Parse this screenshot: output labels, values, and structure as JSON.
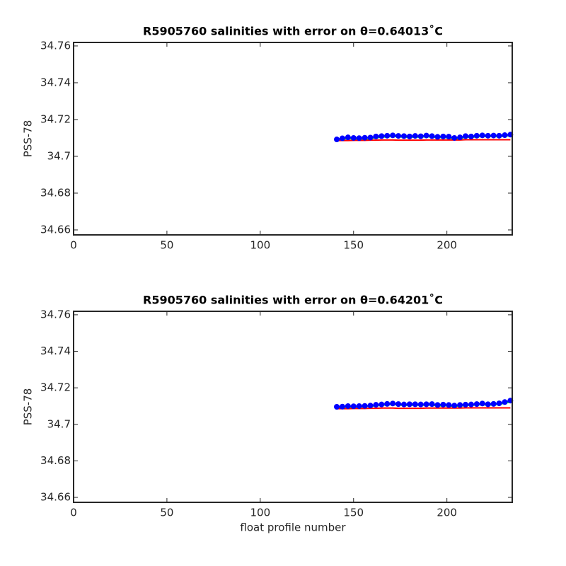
{
  "chart_data": [
    {
      "type": "line",
      "title": "R5905760 salinities with error on θ=0.64013˚C",
      "ylabel": "PSS-78",
      "x": [
        141,
        144,
        147,
        150,
        153,
        156,
        159,
        162,
        165,
        168,
        171,
        174,
        177,
        180,
        183,
        186,
        189,
        192,
        195,
        198,
        201,
        204,
        207,
        210,
        213,
        216,
        219,
        222,
        225,
        228,
        231,
        234
      ],
      "series": [
        {
          "color": "#00ff00",
          "marker": false,
          "values": [
            34.7087,
            34.7091,
            34.7097,
            34.7094,
            34.7093,
            34.7088,
            34.7096,
            34.7101,
            34.7104,
            34.7106,
            34.7108,
            34.7106,
            34.7104,
            34.7103,
            34.7105,
            34.7104,
            34.7107,
            34.7105,
            34.7101,
            34.7103,
            34.71,
            34.7094,
            34.7096,
            34.7104,
            34.7103,
            34.7106,
            34.7108,
            34.7107,
            34.7108,
            34.7106,
            34.711,
            34.7113
          ]
        },
        {
          "color": "#ff0000",
          "marker": false,
          "values": [
            34.7086,
            34.7086,
            34.7086,
            34.7087,
            34.7087,
            34.7087,
            34.7088,
            34.7088,
            34.7089,
            34.7089,
            34.7089,
            34.7088,
            34.7088,
            34.7088,
            34.7088,
            34.7088,
            34.7089,
            34.7089,
            34.7089,
            34.7089,
            34.7089,
            34.7089,
            34.7089,
            34.709,
            34.709,
            34.709,
            34.709,
            34.709,
            34.709,
            34.709,
            34.709,
            34.709
          ]
        },
        {
          "color": "#0000ff",
          "marker": true,
          "values": [
            34.7092,
            34.7098,
            34.7103,
            34.71,
            34.7099,
            34.7101,
            34.7102,
            34.7108,
            34.711,
            34.7112,
            34.7114,
            34.7111,
            34.711,
            34.7108,
            34.7111,
            34.7109,
            34.7113,
            34.711,
            34.7106,
            34.7108,
            34.7107,
            34.71,
            34.7103,
            34.711,
            34.7108,
            34.7112,
            34.7114,
            34.7112,
            34.7113,
            34.7112,
            34.7115,
            34.7118
          ]
        }
      ],
      "xlim": [
        0,
        235
      ],
      "ylim": [
        34.6573,
        34.7619
      ],
      "xticks": [
        0,
        50,
        100,
        150,
        200
      ],
      "yticks": [
        34.66,
        34.68,
        34.7,
        34.72,
        34.74,
        34.76
      ]
    },
    {
      "type": "line",
      "title": "R5905760 salinities with error on θ=0.64201˚C",
      "ylabel": "PSS-78",
      "xlabel": "float profile number",
      "x": [
        141,
        144,
        147,
        150,
        153,
        156,
        159,
        162,
        165,
        168,
        171,
        174,
        177,
        180,
        183,
        186,
        189,
        192,
        195,
        198,
        201,
        204,
        207,
        210,
        213,
        216,
        219,
        222,
        225,
        228,
        231,
        234
      ],
      "series": [
        {
          "color": "#00ff00",
          "marker": false,
          "values": [
            34.709,
            34.7092,
            34.7094,
            34.7093,
            34.7094,
            34.7097,
            34.7099,
            34.7102,
            34.7104,
            34.7107,
            34.7109,
            34.7106,
            34.7104,
            34.7104,
            34.7105,
            34.7104,
            34.7105,
            34.7106,
            34.71,
            34.7103,
            34.7101,
            34.7098,
            34.7101,
            34.7103,
            34.7104,
            34.7106,
            34.7108,
            34.7105,
            34.7107,
            34.711,
            34.7116,
            34.7122
          ]
        },
        {
          "color": "#ff0000",
          "marker": false,
          "values": [
            34.7086,
            34.7086,
            34.7086,
            34.7087,
            34.7087,
            34.7087,
            34.7088,
            34.7088,
            34.7089,
            34.7089,
            34.7089,
            34.7088,
            34.7088,
            34.7088,
            34.7088,
            34.7088,
            34.7089,
            34.7089,
            34.7089,
            34.7089,
            34.7089,
            34.7089,
            34.7089,
            34.709,
            34.709,
            34.709,
            34.709,
            34.709,
            34.709,
            34.709,
            34.709,
            34.709
          ]
        },
        {
          "color": "#0000ff",
          "marker": true,
          "values": [
            34.7096,
            34.7097,
            34.71,
            34.7099,
            34.71,
            34.7101,
            34.7103,
            34.7107,
            34.7109,
            34.7112,
            34.7114,
            34.7111,
            34.7109,
            34.711,
            34.711,
            34.7109,
            34.711,
            34.7111,
            34.7106,
            34.7108,
            34.7106,
            34.7103,
            34.7106,
            34.7108,
            34.7109,
            34.7111,
            34.7114,
            34.711,
            34.7112,
            34.7115,
            34.7122,
            34.713
          ]
        }
      ],
      "xlim": [
        0,
        235
      ],
      "ylim": [
        34.6573,
        34.7619
      ],
      "xticks": [
        0,
        50,
        100,
        150,
        200
      ],
      "yticks": [
        34.66,
        34.68,
        34.7,
        34.72,
        34.74,
        34.76
      ]
    }
  ]
}
